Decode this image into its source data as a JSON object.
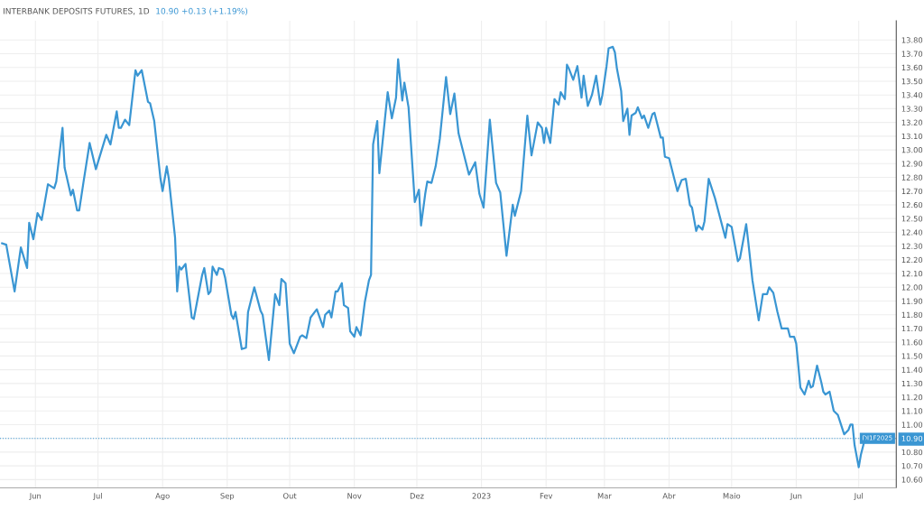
{
  "chart_data": {
    "type": "line",
    "title": "INTERBANK DEPOSITS FUTURES, 1D",
    "subtitle": "10.90 +0.13 (+1.19%)",
    "x": [
      "2022-05-16",
      "2022-05-18",
      "2022-05-22",
      "2022-05-25",
      "2022-05-28",
      "2022-05-29",
      "2022-05-31",
      "2022-06-02",
      "2022-06-04",
      "2022-06-07",
      "2022-06-10",
      "2022-06-11",
      "2022-06-14",
      "2022-06-15",
      "2022-06-18",
      "2022-06-19",
      "2022-06-21",
      "2022-06-22",
      "2022-06-24",
      "2022-06-27",
      "2022-06-30",
      "2022-07-05",
      "2022-07-07",
      "2022-07-10",
      "2022-07-11",
      "2022-07-12",
      "2022-07-14",
      "2022-07-16",
      "2022-07-19",
      "2022-07-20",
      "2022-07-22",
      "2022-07-25",
      "2022-07-26",
      "2022-07-28",
      "2022-07-31",
      "2022-08-01",
      "2022-08-03",
      "2022-08-04",
      "2022-08-07",
      "2022-08-08",
      "2022-08-09",
      "2022-08-10",
      "2022-08-12",
      "2022-08-15",
      "2022-08-16",
      "2022-08-20",
      "2022-08-21",
      "2022-08-23",
      "2022-08-24",
      "2022-08-25",
      "2022-08-27",
      "2022-08-28",
      "2022-08-30",
      "2022-08-31",
      "2022-09-03",
      "2022-09-04",
      "2022-09-05",
      "2022-09-08",
      "2022-09-10",
      "2022-09-11",
      "2022-09-14",
      "2022-09-17",
      "2022-09-18",
      "2022-09-21",
      "2022-09-24",
      "2022-09-26",
      "2022-09-27",
      "2022-09-29",
      "2022-10-01",
      "2022-10-03",
      "2022-10-06",
      "2022-10-07",
      "2022-10-09",
      "2022-10-11",
      "2022-10-14",
      "2022-10-17",
      "2022-10-18",
      "2022-10-20",
      "2022-10-21",
      "2022-10-23",
      "2022-10-24",
      "2022-10-26",
      "2022-10-27",
      "2022-10-29",
      "2022-10-30",
      "2022-11-01",
      "2022-11-02",
      "2022-11-04",
      "2022-11-06",
      "2022-11-08",
      "2022-11-09",
      "2022-11-10",
      "2022-11-12",
      "2022-11-13",
      "2022-11-17",
      "2022-11-19",
      "2022-11-21",
      "2022-11-22",
      "2022-11-24",
      "2022-11-25",
      "2022-11-27",
      "2022-11-30",
      "2022-12-02",
      "2022-12-03",
      "2022-12-05",
      "2022-12-06",
      "2022-12-08",
      "2022-12-09",
      "2022-12-10",
      "2022-12-12",
      "2022-12-15",
      "2022-12-17",
      "2022-12-19",
      "2022-12-21",
      "2022-12-26",
      "2022-12-29",
      "2022-12-31",
      "2023-01-02",
      "2023-01-05",
      "2023-01-08",
      "2023-01-10",
      "2023-01-13",
      "2023-01-16",
      "2023-01-17",
      "2023-01-20",
      "2023-01-23",
      "2023-01-25",
      "2023-01-28",
      "2023-01-30",
      "2023-01-31",
      "2023-02-01",
      "2023-02-03",
      "2023-02-05",
      "2023-02-07",
      "2023-02-08",
      "2023-02-10",
      "2023-02-11",
      "2023-02-12",
      "2023-02-14",
      "2023-02-16",
      "2023-02-18",
      "2023-02-19",
      "2023-02-21",
      "2023-02-23",
      "2023-02-25",
      "2023-02-27",
      "2023-02-28",
      "2023-03-02",
      "2023-03-03",
      "2023-03-05",
      "2023-03-06",
      "2023-03-07",
      "2023-03-09",
      "2023-03-10",
      "2023-03-12",
      "2023-03-13",
      "2023-03-14",
      "2023-03-16",
      "2023-03-17",
      "2023-03-19",
      "2023-03-20",
      "2023-03-22",
      "2023-03-24",
      "2023-03-25",
      "2023-03-28",
      "2023-03-29",
      "2023-03-30",
      "2023-04-01",
      "2023-04-05",
      "2023-04-07",
      "2023-04-09",
      "2023-04-11",
      "2023-04-12",
      "2023-04-14",
      "2023-04-15",
      "2023-04-17",
      "2023-04-18",
      "2023-04-20",
      "2023-04-23",
      "2023-04-28",
      "2023-04-29",
      "2023-05-01",
      "2023-05-04",
      "2023-05-05",
      "2023-05-08",
      "2023-05-09",
      "2023-05-11",
      "2023-05-14",
      "2023-05-16",
      "2023-05-18",
      "2023-05-19",
      "2023-05-21",
      "2023-05-23",
      "2023-05-25",
      "2023-05-28",
      "2023-05-29",
      "2023-05-31",
      "2023-06-01",
      "2023-06-03",
      "2023-06-05",
      "2023-06-07",
      "2023-06-08",
      "2023-06-09",
      "2023-06-11",
      "2023-06-13",
      "2023-06-14",
      "2023-06-15",
      "2023-06-17",
      "2023-06-19",
      "2023-06-21",
      "2023-06-24",
      "2023-06-26",
      "2023-06-27",
      "2023-06-28",
      "2023-06-29",
      "2023-07-01",
      "2023-07-02",
      "2023-07-04"
    ],
    "series": [
      {
        "color": "#3a96d3",
        "values": [
          12.32,
          12.31,
          11.97,
          12.29,
          12.14,
          12.47,
          12.35,
          12.54,
          12.49,
          12.75,
          12.72,
          12.77,
          13.16,
          12.87,
          12.67,
          12.71,
          12.56,
          12.56,
          12.76,
          13.05,
          12.86,
          13.11,
          13.04,
          13.28,
          13.16,
          13.16,
          13.22,
          13.18,
          13.58,
          13.54,
          13.58,
          13.35,
          13.34,
          13.21,
          12.79,
          12.7,
          12.88,
          12.79,
          12.36,
          11.97,
          12.15,
          12.13,
          12.17,
          11.78,
          11.77,
          12.09,
          12.14,
          11.95,
          11.97,
          12.15,
          12.09,
          12.14,
          12.13,
          12.07,
          11.8,
          11.77,
          11.82,
          11.55,
          11.56,
          11.82,
          12.0,
          11.83,
          11.8,
          11.47,
          11.95,
          11.87,
          12.06,
          12.03,
          11.59,
          11.52,
          11.64,
          11.65,
          11.63,
          11.78,
          11.84,
          11.71,
          11.8,
          11.83,
          11.78,
          11.97,
          11.97,
          12.03,
          11.87,
          11.85,
          11.68,
          11.64,
          11.71,
          11.65,
          11.89,
          12.05,
          12.09,
          13.04,
          13.21,
          12.83,
          13.42,
          13.23,
          13.38,
          13.66,
          13.36,
          13.49,
          13.31,
          12.62,
          12.71,
          12.45,
          12.68,
          12.77,
          12.76,
          12.82,
          12.88,
          13.08,
          13.53,
          13.26,
          13.41,
          13.12,
          12.82,
          12.91,
          12.68,
          12.58,
          13.22,
          12.76,
          12.69,
          12.23,
          12.6,
          12.52,
          12.7,
          13.25,
          12.96,
          13.2,
          13.16,
          13.05,
          13.16,
          13.05,
          13.37,
          13.33,
          13.42,
          13.37,
          13.62,
          13.59,
          13.51,
          13.61,
          13.38,
          13.54,
          13.32,
          13.4,
          13.54,
          13.33,
          13.4,
          13.61,
          13.74,
          13.75,
          13.71,
          13.59,
          13.43,
          13.21,
          13.3,
          13.11,
          13.25,
          13.27,
          13.31,
          13.23,
          13.25,
          13.16,
          13.26,
          13.27,
          13.09,
          13.09,
          12.95,
          12.94,
          12.7,
          12.78,
          12.79,
          12.6,
          12.58,
          12.41,
          12.45,
          12.42,
          12.48,
          12.79,
          12.65,
          12.36,
          12.46,
          12.44,
          12.19,
          12.21,
          12.46,
          12.33,
          12.05,
          11.76,
          11.95,
          11.95,
          12.0,
          11.96,
          11.82,
          11.7,
          11.7,
          11.64,
          11.64,
          11.59,
          11.27,
          11.22,
          11.32,
          11.27,
          11.28,
          11.43,
          11.31,
          11.24,
          11.22,
          11.24,
          11.1,
          11.07,
          10.93,
          10.96,
          11.0,
          11.0,
          10.85,
          10.69,
          10.78,
          10.9
        ]
      }
    ],
    "xlim": [
      "2022-05-15",
      "2023-07-19"
    ],
    "xticks": [
      {
        "value": "2022-06-01",
        "label": "Jun"
      },
      {
        "value": "2022-07-01",
        "label": "Jul"
      },
      {
        "value": "2022-08-01",
        "label": "Ago"
      },
      {
        "value": "2022-09-01",
        "label": "Sep"
      },
      {
        "value": "2022-10-01",
        "label": "Out"
      },
      {
        "value": "2022-11-01",
        "label": "Nov"
      },
      {
        "value": "2022-12-01",
        "label": "Dez"
      },
      {
        "value": "2023-01-01",
        "label": "2023"
      },
      {
        "value": "2023-02-01",
        "label": "Fev"
      },
      {
        "value": "2023-03-01",
        "label": "Mar"
      },
      {
        "value": "2023-04-01",
        "label": "Abr"
      },
      {
        "value": "2023-05-01",
        "label": "Maio"
      },
      {
        "value": "2023-06-01",
        "label": "Jun"
      },
      {
        "value": "2023-07-01",
        "label": "Jul"
      }
    ],
    "ylim": [
      10.54,
      13.94
    ],
    "yticks": [
      {
        "value": 10.6,
        "label": "10.60"
      },
      {
        "value": 10.7,
        "label": "10.70"
      },
      {
        "value": 10.8,
        "label": "10.80"
      },
      {
        "value": 10.9,
        "label": "10.90"
      },
      {
        "value": 11.0,
        "label": "11.00"
      },
      {
        "value": 11.1,
        "label": "11.10"
      },
      {
        "value": 11.2,
        "label": "11.20"
      },
      {
        "value": 11.3,
        "label": "11.30"
      },
      {
        "value": 11.4,
        "label": "11.40"
      },
      {
        "value": 11.5,
        "label": "11.50"
      },
      {
        "value": 11.6,
        "label": "11.60"
      },
      {
        "value": 11.7,
        "label": "11.70"
      },
      {
        "value": 11.8,
        "label": "11.80"
      },
      {
        "value": 11.9,
        "label": "11.90"
      },
      {
        "value": 12.0,
        "label": "12.00"
      },
      {
        "value": 12.1,
        "label": "12.10"
      },
      {
        "value": 12.2,
        "label": "12.20"
      },
      {
        "value": 12.3,
        "label": "12.30"
      },
      {
        "value": 12.4,
        "label": "12.40"
      },
      {
        "value": 12.5,
        "label": "12.50"
      },
      {
        "value": 12.6,
        "label": "12.60"
      },
      {
        "value": 12.7,
        "label": "12.70"
      },
      {
        "value": 12.8,
        "label": "12.80"
      },
      {
        "value": 12.9,
        "label": "12.90"
      },
      {
        "value": 13.0,
        "label": "13.00"
      },
      {
        "value": 13.1,
        "label": "13.10"
      },
      {
        "value": 13.2,
        "label": "13.20"
      },
      {
        "value": 13.3,
        "label": "13.30"
      },
      {
        "value": 13.4,
        "label": "13.40"
      },
      {
        "value": 13.5,
        "label": "13.50"
      },
      {
        "value": 13.6,
        "label": "13.60"
      },
      {
        "value": 13.7,
        "label": "13.70"
      },
      {
        "value": 13.8,
        "label": "13.80"
      }
    ],
    "ref_lines": [
      {
        "axis": "y",
        "value": 10.9,
        "label": "DI1F2025",
        "color": "#3a96d3",
        "line_style": "dotted"
      }
    ],
    "grid": true,
    "marker": "none",
    "line_style": "solid"
  }
}
